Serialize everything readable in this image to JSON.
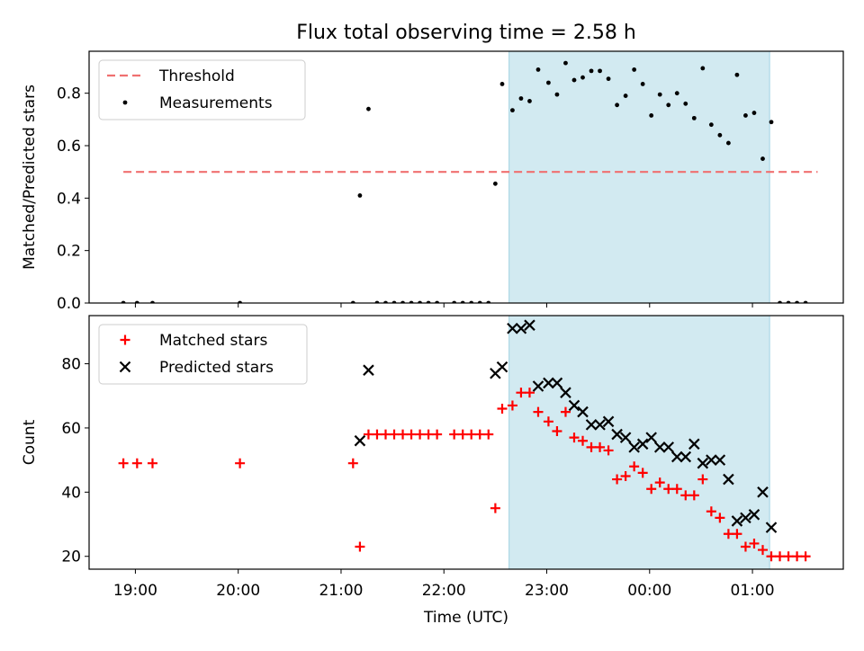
{
  "figure": {
    "title": "Flux total observing time = 2.58 h"
  },
  "colors": {
    "threshold": "#f07070",
    "shade": "#add8e6",
    "matched": "#ff0000",
    "predicted": "#000000",
    "measurement": "#000000"
  },
  "chart_data": [
    {
      "type": "scatter",
      "ylabel": "Matched/Predicted stars",
      "xlabel": "",
      "x_axis_type": "time",
      "xlim": [
        "18:33",
        "01:53"
      ],
      "ylim": [
        0,
        0.96
      ],
      "yticks": [
        0.0,
        0.2,
        0.4,
        0.6,
        0.8
      ],
      "ytick_labels": [
        "0.0",
        "0.2",
        "0.4",
        "0.6",
        "0.8"
      ],
      "xticks": [
        "19:00",
        "20:00",
        "21:00",
        "22:00",
        "23:00",
        "00:00",
        "01:00"
      ],
      "show_xtick_labels": false,
      "legend": {
        "placement": "upper left",
        "entries": [
          "Threshold",
          "Measurements"
        ]
      },
      "shaded_region": {
        "from": "22:38",
        "to": "01:10"
      },
      "threshold": {
        "name": "Threshold",
        "value": 0.5,
        "x_from": "18:53",
        "x_to": "01:38"
      },
      "series": [
        {
          "name": "Measurements",
          "x": [
            "18:53",
            "19:01",
            "19:10",
            "20:01",
            "21:07",
            "21:11",
            "21:16",
            "21:21",
            "21:26",
            "21:31",
            "21:36",
            "21:41",
            "21:46",
            "21:51",
            "21:56",
            "22:06",
            "22:11",
            "22:16",
            "22:21",
            "22:26",
            "22:30",
            "22:34",
            "22:40",
            "22:45",
            "22:50",
            "22:55",
            "23:01",
            "23:06",
            "23:11",
            "23:16",
            "23:21",
            "23:26",
            "23:31",
            "23:36",
            "23:41",
            "23:46",
            "23:51",
            "23:56",
            "00:01",
            "00:06",
            "00:11",
            "00:16",
            "00:21",
            "00:26",
            "00:31",
            "00:36",
            "00:41",
            "00:46",
            "00:51",
            "00:56",
            "01:01",
            "01:06",
            "01:11",
            "01:16",
            "01:21",
            "01:26",
            "01:31"
          ],
          "y": [
            0,
            0,
            0,
            0,
            0,
            0.41,
            0.74,
            0,
            0,
            0,
            0,
            0,
            0,
            0,
            0,
            0,
            0,
            0,
            0,
            0,
            0.455,
            0.835,
            0.735,
            0.78,
            0.77,
            0.89,
            0.84,
            0.795,
            0.915,
            0.85,
            0.86,
            0.885,
            0.885,
            0.855,
            0.755,
            0.79,
            0.89,
            0.835,
            0.715,
            0.795,
            0.755,
            0.8,
            0.76,
            0.705,
            0.895,
            0.68,
            0.64,
            0.61,
            0.87,
            0.715,
            0.725,
            0.55,
            0.69,
            0,
            0,
            0,
            0
          ]
        }
      ]
    },
    {
      "type": "scatter",
      "ylabel": "Count",
      "xlabel": "Time (UTC)",
      "x_axis_type": "time",
      "xlim": [
        "18:33",
        "01:53"
      ],
      "ylim": [
        16,
        95
      ],
      "yticks": [
        20,
        40,
        60,
        80
      ],
      "ytick_labels": [
        "20",
        "40",
        "60",
        "80"
      ],
      "xticks": [
        "19:00",
        "20:00",
        "21:00",
        "22:00",
        "23:00",
        "00:00",
        "01:00"
      ],
      "xtick_labels": [
        "19:00",
        "20:00",
        "21:00",
        "22:00",
        "23:00",
        "00:00",
        "01:00"
      ],
      "legend": {
        "placement": "upper left",
        "entries": [
          "Matched stars",
          "Predicted stars"
        ]
      },
      "shaded_region": {
        "from": "22:38",
        "to": "01:10"
      },
      "series": [
        {
          "name": "Matched stars",
          "marker": "plus",
          "x": [
            "18:53",
            "19:01",
            "19:10",
            "20:01",
            "21:07",
            "21:11",
            "21:16",
            "21:21",
            "21:26",
            "21:31",
            "21:36",
            "21:41",
            "21:46",
            "21:51",
            "21:56",
            "22:06",
            "22:11",
            "22:16",
            "22:21",
            "22:26",
            "22:30",
            "22:34",
            "22:40",
            "22:45",
            "22:50",
            "22:55",
            "23:01",
            "23:06",
            "23:11",
            "23:16",
            "23:21",
            "23:26",
            "23:31",
            "23:36",
            "23:41",
            "23:46",
            "23:51",
            "23:56",
            "00:01",
            "00:06",
            "00:11",
            "00:16",
            "00:21",
            "00:26",
            "00:31",
            "00:36",
            "00:41",
            "00:46",
            "00:51",
            "00:56",
            "01:01",
            "01:06",
            "01:11",
            "01:16",
            "01:21",
            "01:26",
            "01:31"
          ],
          "y": [
            49,
            49,
            49,
            49,
            49,
            23,
            58,
            58,
            58,
            58,
            58,
            58,
            58,
            58,
            58,
            58,
            58,
            58,
            58,
            58,
            35,
            66,
            67,
            71,
            71,
            65,
            62,
            59,
            65,
            57,
            56,
            54,
            54,
            53,
            44,
            45,
            48,
            46,
            41,
            43,
            41,
            41,
            39,
            39,
            44,
            34,
            32,
            27,
            27,
            23,
            24,
            22,
            20,
            20,
            20,
            20,
            20
          ]
        },
        {
          "name": "Predicted stars",
          "marker": "x",
          "x": [
            "21:11",
            "21:16",
            "22:30",
            "22:34",
            "22:40",
            "22:45",
            "22:50",
            "22:55",
            "23:01",
            "23:06",
            "23:11",
            "23:16",
            "23:21",
            "23:26",
            "23:31",
            "23:36",
            "23:41",
            "23:46",
            "23:51",
            "23:56",
            "00:01",
            "00:06",
            "00:11",
            "00:16",
            "00:21",
            "00:26",
            "00:31",
            "00:36",
            "00:41",
            "00:46",
            "00:51",
            "00:56",
            "01:01",
            "01:06",
            "01:11"
          ],
          "y": [
            56,
            78,
            77,
            79,
            91,
            91,
            92,
            73,
            74,
            74,
            71,
            67,
            65,
            61,
            61,
            62,
            58,
            57,
            54,
            55,
            57,
            54,
            54,
            51,
            51,
            55,
            49,
            50,
            50,
            44,
            31,
            32,
            33,
            40,
            29
          ]
        }
      ]
    }
  ]
}
